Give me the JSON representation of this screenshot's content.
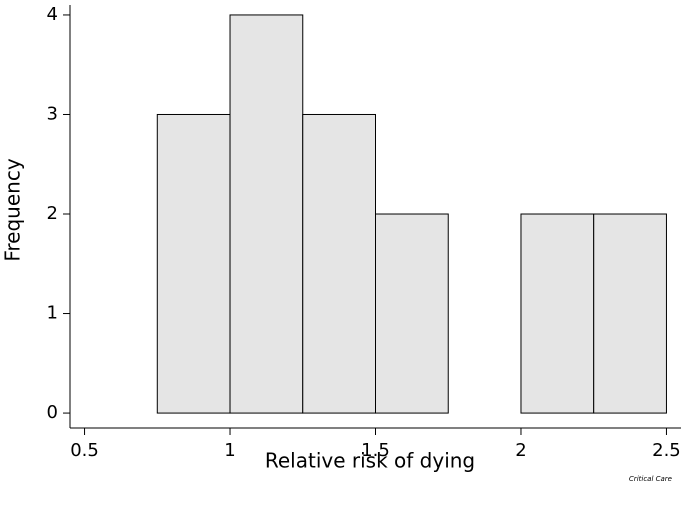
{
  "chart_data": {
    "type": "histogram",
    "xlabel": "Relative risk of dying",
    "ylabel": "Frequency",
    "bins": [
      0.75,
      1.0,
      1.25,
      1.5,
      1.75,
      2.0,
      2.25,
      2.5
    ],
    "values": [
      3,
      4,
      3,
      2,
      0,
      2,
      2
    ],
    "color": "#e5e5e5",
    "xlim": [
      0.45,
      2.55
    ],
    "xticks": [
      0.5,
      1,
      1.5,
      2,
      2.5
    ],
    "ylim": [
      -0.15,
      4.1
    ],
    "yticks": [
      0,
      1,
      2,
      3,
      4
    ],
    "grid": false
  },
  "watermark": "Critical Care"
}
